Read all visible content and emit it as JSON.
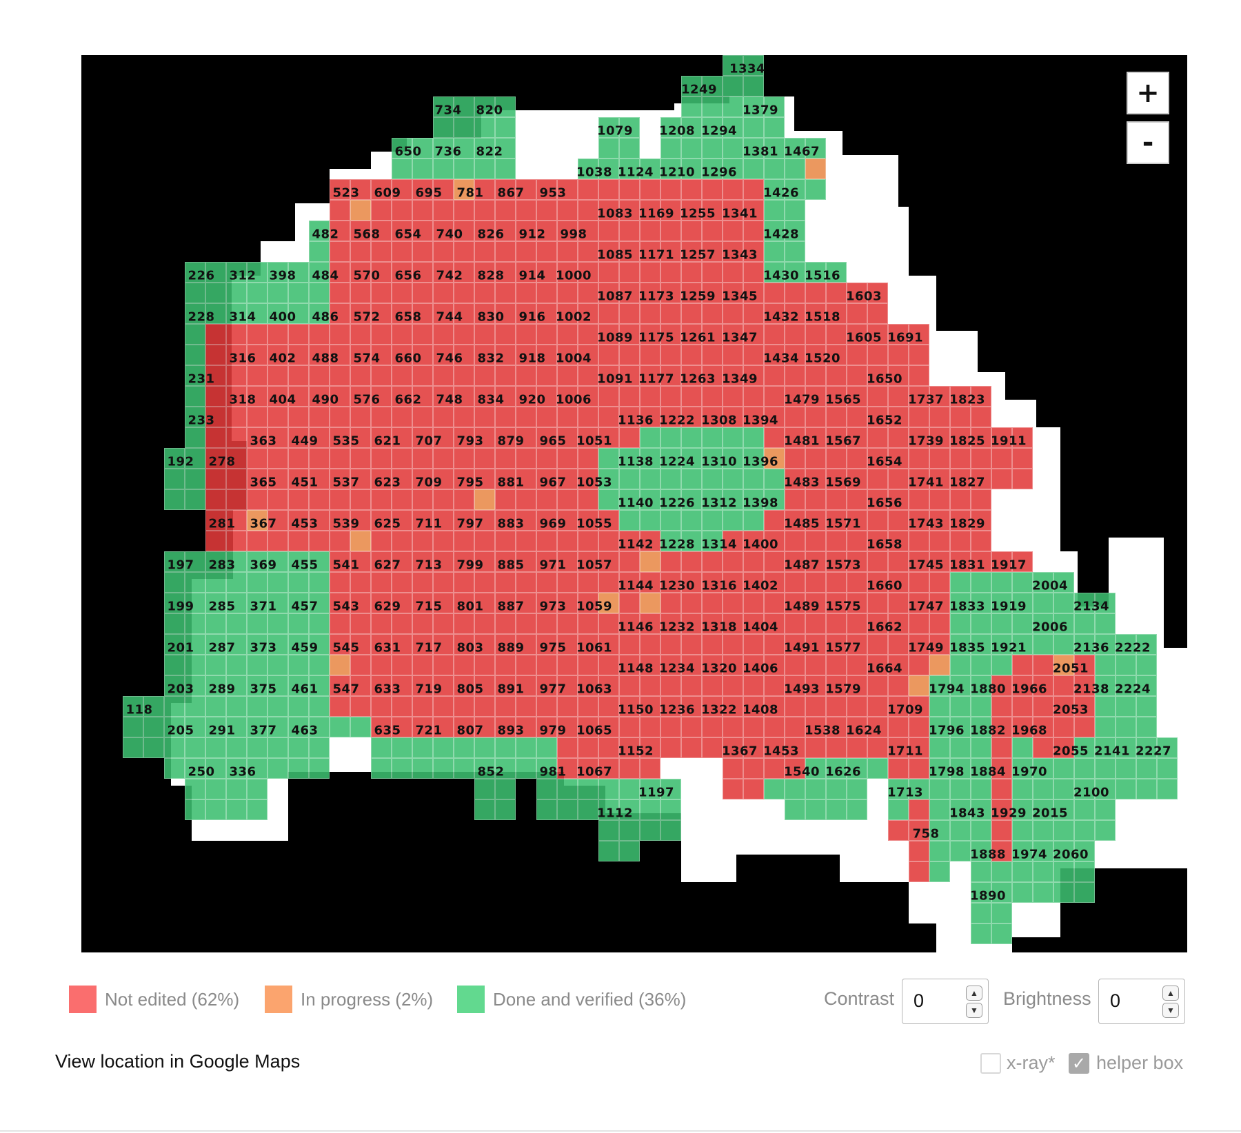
{
  "map": {
    "colors": {
      "not_edited": "#e23b3b",
      "in_progress": "#e98a4a",
      "done": "#3dbf70",
      "background": "#000000"
    },
    "zoom_in_label": "+",
    "zoom_out_label": "-",
    "tile_labels": [
      [
        "1334",
        1084,
        100
      ],
      [
        "1249",
        1014,
        130
      ],
      [
        "734",
        650,
        160
      ],
      [
        "820",
        710,
        160
      ],
      [
        "1379",
        1103,
        160
      ],
      [
        "1079",
        892,
        190
      ],
      [
        "1208",
        982,
        190
      ],
      [
        "1294",
        1043,
        190
      ],
      [
        "650",
        592,
        220
      ],
      [
        "736",
        650,
        220
      ],
      [
        "822",
        710,
        220
      ],
      [
        "1381",
        1103,
        220
      ],
      [
        "1467",
        1163,
        220
      ],
      [
        "1038",
        862,
        250
      ],
      [
        "1124",
        922,
        250
      ],
      [
        "1210",
        982,
        250
      ],
      [
        "1296",
        1043,
        250
      ],
      [
        "523",
        502,
        280
      ],
      [
        "609",
        562,
        280
      ],
      [
        "695",
        622,
        280
      ],
      [
        "781",
        682,
        280
      ],
      [
        "867",
        741,
        280
      ],
      [
        "953",
        802,
        280
      ],
      [
        "1426",
        1133,
        280
      ],
      [
        "1083",
        892,
        310
      ],
      [
        "1169",
        952,
        310
      ],
      [
        "1255",
        1012,
        310
      ],
      [
        "1341",
        1073,
        310
      ],
      [
        "482",
        472,
        340
      ],
      [
        "568",
        532,
        340
      ],
      [
        "654",
        592,
        340
      ],
      [
        "740",
        652,
        340
      ],
      [
        "826",
        712,
        340
      ],
      [
        "912",
        772,
        340
      ],
      [
        "998",
        832,
        340
      ],
      [
        "1428",
        1133,
        340
      ],
      [
        "1085",
        892,
        370
      ],
      [
        "1171",
        952,
        370
      ],
      [
        "1257",
        1012,
        370
      ],
      [
        "1343",
        1073,
        370
      ],
      [
        "226",
        292,
        400
      ],
      [
        "312",
        352,
        400
      ],
      [
        "398",
        410,
        400
      ],
      [
        "484",
        472,
        400
      ],
      [
        "570",
        532,
        400
      ],
      [
        "656",
        592,
        400
      ],
      [
        "742",
        652,
        400
      ],
      [
        "828",
        712,
        400
      ],
      [
        "914",
        772,
        400
      ],
      [
        "1000",
        832,
        400
      ],
      [
        "1430",
        1133,
        400
      ],
      [
        "1516",
        1193,
        400
      ],
      [
        "1087",
        892,
        430
      ],
      [
        "1173",
        952,
        430
      ],
      [
        "1259",
        1012,
        430
      ],
      [
        "1345",
        1073,
        430
      ],
      [
        "1603",
        1253,
        430
      ],
      [
        "228",
        292,
        460
      ],
      [
        "314",
        352,
        460
      ],
      [
        "400",
        410,
        460
      ],
      [
        "486",
        472,
        460
      ],
      [
        "572",
        532,
        460
      ],
      [
        "658",
        592,
        460
      ],
      [
        "744",
        652,
        460
      ],
      [
        "830",
        712,
        460
      ],
      [
        "916",
        772,
        460
      ],
      [
        "1002",
        832,
        460
      ],
      [
        "1432",
        1133,
        460
      ],
      [
        "1518",
        1193,
        460
      ],
      [
        "1089",
        892,
        490
      ],
      [
        "1175",
        952,
        490
      ],
      [
        "1261",
        1012,
        490
      ],
      [
        "1347",
        1073,
        490
      ],
      [
        "1605",
        1253,
        490
      ],
      [
        "1691",
        1313,
        490
      ],
      [
        "316",
        352,
        520
      ],
      [
        "402",
        410,
        520
      ],
      [
        "488",
        472,
        520
      ],
      [
        "574",
        532,
        520
      ],
      [
        "660",
        592,
        520
      ],
      [
        "746",
        652,
        520
      ],
      [
        "832",
        712,
        520
      ],
      [
        "918",
        772,
        520
      ],
      [
        "1004",
        832,
        520
      ],
      [
        "1434",
        1133,
        520
      ],
      [
        "1520",
        1193,
        520
      ],
      [
        "231",
        292,
        550
      ],
      [
        "1091",
        892,
        550
      ],
      [
        "1177",
        952,
        550
      ],
      [
        "1263",
        1012,
        550
      ],
      [
        "1349",
        1073,
        550
      ],
      [
        "1650",
        1283,
        550
      ],
      [
        "318",
        352,
        580
      ],
      [
        "404",
        410,
        580
      ],
      [
        "490",
        472,
        580
      ],
      [
        "576",
        532,
        580
      ],
      [
        "662",
        592,
        580
      ],
      [
        "748",
        652,
        580
      ],
      [
        "834",
        712,
        580
      ],
      [
        "920",
        772,
        580
      ],
      [
        "1006",
        832,
        580
      ],
      [
        "1479",
        1163,
        580
      ],
      [
        "1565",
        1223,
        580
      ],
      [
        "1737",
        1343,
        580
      ],
      [
        "1823",
        1403,
        580
      ],
      [
        "233",
        292,
        610
      ],
      [
        "1136",
        922,
        610
      ],
      [
        "1222",
        982,
        610
      ],
      [
        "1308",
        1043,
        610
      ],
      [
        "1394",
        1103,
        610
      ],
      [
        "1652",
        1283,
        610
      ],
      [
        "363",
        382,
        640
      ],
      [
        "449",
        442,
        640
      ],
      [
        "535",
        502,
        640
      ],
      [
        "621",
        562,
        640
      ],
      [
        "707",
        622,
        640
      ],
      [
        "793",
        682,
        640
      ],
      [
        "879",
        741,
        640
      ],
      [
        "965",
        802,
        640
      ],
      [
        "1051",
        862,
        640
      ],
      [
        "1481",
        1163,
        640
      ],
      [
        "1567",
        1223,
        640
      ],
      [
        "1739",
        1343,
        640
      ],
      [
        "1825",
        1403,
        640
      ],
      [
        "1911",
        1463,
        640
      ],
      [
        "192",
        262,
        670
      ],
      [
        "278",
        322,
        670
      ],
      [
        "1138",
        922,
        670
      ],
      [
        "1224",
        982,
        670
      ],
      [
        "1310",
        1043,
        670
      ],
      [
        "1396",
        1103,
        670
      ],
      [
        "1654",
        1283,
        670
      ],
      [
        "365",
        382,
        700
      ],
      [
        "451",
        442,
        700
      ],
      [
        "537",
        502,
        700
      ],
      [
        "623",
        562,
        700
      ],
      [
        "709",
        622,
        700
      ],
      [
        "795",
        682,
        700
      ],
      [
        "881",
        741,
        700
      ],
      [
        "967",
        802,
        700
      ],
      [
        "1053",
        862,
        700
      ],
      [
        "1483",
        1163,
        700
      ],
      [
        "1569",
        1223,
        700
      ],
      [
        "1741",
        1343,
        700
      ],
      [
        "1827",
        1403,
        700
      ],
      [
        "1140",
        922,
        730
      ],
      [
        "1226",
        982,
        730
      ],
      [
        "1312",
        1043,
        730
      ],
      [
        "1398",
        1103,
        730
      ],
      [
        "1656",
        1283,
        730
      ],
      [
        "281",
        322,
        760
      ],
      [
        "367",
        382,
        760
      ],
      [
        "453",
        442,
        760
      ],
      [
        "539",
        502,
        760
      ],
      [
        "625",
        562,
        760
      ],
      [
        "711",
        622,
        760
      ],
      [
        "797",
        682,
        760
      ],
      [
        "883",
        741,
        760
      ],
      [
        "969",
        802,
        760
      ],
      [
        "1055",
        862,
        760
      ],
      [
        "1485",
        1163,
        760
      ],
      [
        "1571",
        1223,
        760
      ],
      [
        "1743",
        1343,
        760
      ],
      [
        "1829",
        1403,
        760
      ],
      [
        "1142",
        922,
        790
      ],
      [
        "1228",
        982,
        790
      ],
      [
        "1314",
        1043,
        790
      ],
      [
        "1400",
        1103,
        790
      ],
      [
        "1658",
        1283,
        790
      ],
      [
        "197",
        262,
        820
      ],
      [
        "283",
        322,
        820
      ],
      [
        "369",
        382,
        820
      ],
      [
        "455",
        442,
        820
      ],
      [
        "541",
        502,
        820
      ],
      [
        "627",
        562,
        820
      ],
      [
        "713",
        622,
        820
      ],
      [
        "799",
        682,
        820
      ],
      [
        "885",
        741,
        820
      ],
      [
        "971",
        802,
        820
      ],
      [
        "1057",
        862,
        820
      ],
      [
        "1487",
        1163,
        820
      ],
      [
        "1573",
        1223,
        820
      ],
      [
        "1745",
        1343,
        820
      ],
      [
        "1831",
        1403,
        820
      ],
      [
        "1917",
        1463,
        820
      ],
      [
        "1144",
        922,
        850
      ],
      [
        "1230",
        982,
        850
      ],
      [
        "1316",
        1043,
        850
      ],
      [
        "1402",
        1103,
        850
      ],
      [
        "1660",
        1283,
        850
      ],
      [
        "2004",
        1523,
        850
      ],
      [
        "199",
        262,
        880
      ],
      [
        "285",
        322,
        880
      ],
      [
        "371",
        382,
        880
      ],
      [
        "457",
        442,
        880
      ],
      [
        "543",
        502,
        880
      ],
      [
        "629",
        562,
        880
      ],
      [
        "715",
        622,
        880
      ],
      [
        "801",
        682,
        880
      ],
      [
        "887",
        741,
        880
      ],
      [
        "973",
        802,
        880
      ],
      [
        "1059",
        862,
        880
      ],
      [
        "1489",
        1163,
        880
      ],
      [
        "1575",
        1223,
        880
      ],
      [
        "1747",
        1343,
        880
      ],
      [
        "1833",
        1403,
        880
      ],
      [
        "1919",
        1463,
        880
      ],
      [
        "2134",
        1583,
        880
      ],
      [
        "1146",
        922,
        910
      ],
      [
        "1232",
        982,
        910
      ],
      [
        "1318",
        1043,
        910
      ],
      [
        "1404",
        1103,
        910
      ],
      [
        "1662",
        1283,
        910
      ],
      [
        "2006",
        1523,
        910
      ],
      [
        "201",
        262,
        940
      ],
      [
        "287",
        322,
        940
      ],
      [
        "373",
        382,
        940
      ],
      [
        "459",
        442,
        940
      ],
      [
        "545",
        502,
        940
      ],
      [
        "631",
        562,
        940
      ],
      [
        "717",
        622,
        940
      ],
      [
        "803",
        682,
        940
      ],
      [
        "889",
        741,
        940
      ],
      [
        "975",
        802,
        940
      ],
      [
        "1061",
        862,
        940
      ],
      [
        "1491",
        1163,
        940
      ],
      [
        "1577",
        1223,
        940
      ],
      [
        "1749",
        1343,
        940
      ],
      [
        "1835",
        1403,
        940
      ],
      [
        "1921",
        1463,
        940
      ],
      [
        "2136",
        1583,
        940
      ],
      [
        "2222",
        1643,
        940
      ],
      [
        "1148",
        922,
        970
      ],
      [
        "1234",
        982,
        970
      ],
      [
        "1320",
        1043,
        970
      ],
      [
        "1406",
        1103,
        970
      ],
      [
        "1664",
        1283,
        970
      ],
      [
        "2051",
        1553,
        970
      ],
      [
        "203",
        262,
        1000
      ],
      [
        "289",
        322,
        1000
      ],
      [
        "375",
        382,
        1000
      ],
      [
        "461",
        442,
        1000
      ],
      [
        "547",
        502,
        1000
      ],
      [
        "633",
        562,
        1000
      ],
      [
        "719",
        622,
        1000
      ],
      [
        "805",
        682,
        1000
      ],
      [
        "891",
        741,
        1000
      ],
      [
        "977",
        802,
        1000
      ],
      [
        "1063",
        862,
        1000
      ],
      [
        "1493",
        1163,
        1000
      ],
      [
        "1579",
        1223,
        1000
      ],
      [
        "1794",
        1373,
        1000
      ],
      [
        "1880",
        1433,
        1000
      ],
      [
        "1966",
        1493,
        1000
      ],
      [
        "2138",
        1583,
        1000
      ],
      [
        "2224",
        1643,
        1000
      ],
      [
        "118",
        202,
        1030
      ],
      [
        "1150",
        922,
        1030
      ],
      [
        "1236",
        982,
        1030
      ],
      [
        "1322",
        1043,
        1030
      ],
      [
        "1408",
        1103,
        1030
      ],
      [
        "1709",
        1313,
        1030
      ],
      [
        "2053",
        1553,
        1030
      ],
      [
        "205",
        262,
        1060
      ],
      [
        "291",
        322,
        1060
      ],
      [
        "377",
        382,
        1060
      ],
      [
        "463",
        442,
        1060
      ],
      [
        "635",
        562,
        1060
      ],
      [
        "721",
        622,
        1060
      ],
      [
        "807",
        682,
        1060
      ],
      [
        "893",
        741,
        1060
      ],
      [
        "979",
        802,
        1060
      ],
      [
        "1065",
        862,
        1060
      ],
      [
        "1538",
        1193,
        1060
      ],
      [
        "1624",
        1253,
        1060
      ],
      [
        "1796",
        1373,
        1060
      ],
      [
        "1882",
        1433,
        1060
      ],
      [
        "1968",
        1493,
        1060
      ],
      [
        "1152",
        922,
        1090
      ],
      [
        "1367",
        1073,
        1090
      ],
      [
        "1453",
        1133,
        1090
      ],
      [
        "1711",
        1313,
        1090
      ],
      [
        "2055",
        1553,
        1090
      ],
      [
        "2141",
        1613,
        1090
      ],
      [
        "2227",
        1673,
        1090
      ],
      [
        "250",
        292,
        1120
      ],
      [
        "336",
        352,
        1120
      ],
      [
        "852",
        712,
        1120
      ],
      [
        "981",
        802,
        1120
      ],
      [
        "1067",
        862,
        1120
      ],
      [
        "1540",
        1163,
        1120
      ],
      [
        "1626",
        1223,
        1120
      ],
      [
        "1798",
        1373,
        1120
      ],
      [
        "1884",
        1433,
        1120
      ],
      [
        "1970",
        1493,
        1120
      ],
      [
        "1197",
        952,
        1150
      ],
      [
        "1713",
        1313,
        1150
      ],
      [
        "2100",
        1583,
        1150
      ],
      [
        "1112",
        892,
        1180
      ],
      [
        "1843",
        1403,
        1180
      ],
      [
        "1929",
        1463,
        1180
      ],
      [
        "2015",
        1523,
        1180
      ],
      [
        "758",
        1343,
        1210
      ],
      [
        "1888",
        1433,
        1240
      ],
      [
        "1974",
        1493,
        1240
      ],
      [
        "2060",
        1553,
        1240
      ],
      [
        "1890",
        1433,
        1300
      ]
    ]
  },
  "legend": [
    {
      "label": "Not edited (62%)",
      "color": "#fa6e6e"
    },
    {
      "label": "In progress (2%)",
      "color": "#fba46e"
    },
    {
      "label": "Done and verified (36%)",
      "color": "#62d98f"
    }
  ],
  "controls": {
    "contrast_label": "Contrast",
    "contrast_value": "0",
    "brightness_label": "Brightness",
    "brightness_value": "0",
    "spin_up_icon": "chevron-up",
    "spin_down_icon": "chevron-down"
  },
  "footer": {
    "maps_link": "View location in Google Maps",
    "xray_label": "x-ray*",
    "xray_checked": false,
    "helper_label": "helper box",
    "helper_checked": true
  }
}
